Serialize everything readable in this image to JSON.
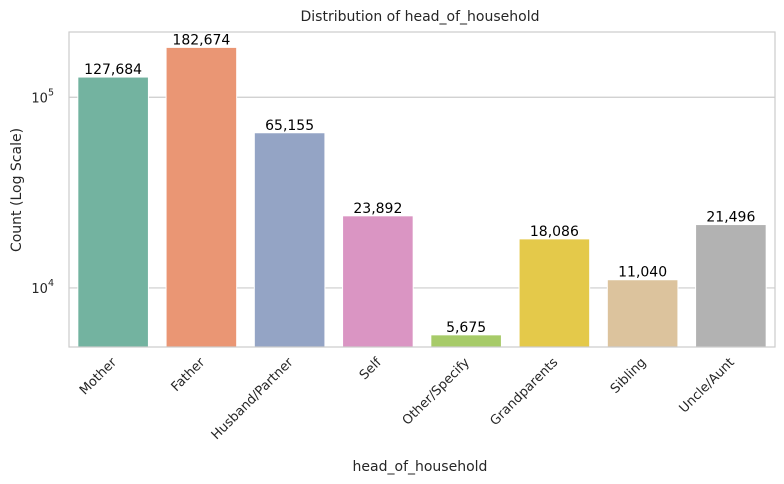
{
  "chart_data": {
    "type": "bar",
    "title": "Distribution of head_of_household",
    "xlabel": "head_of_household",
    "ylabel": "Count (Log Scale)",
    "yscale": "log",
    "ylim": [
      4900,
      220000
    ],
    "yticks": [
      {
        "value": 10000,
        "base": "10",
        "exp": "4"
      },
      {
        "value": 100000,
        "base": "10",
        "exp": "5"
      }
    ],
    "grid": "horizontal",
    "categories": [
      "Mother",
      "Father",
      "Husband/Partner",
      "Self",
      "Other/Specify",
      "Grandparents",
      "Sibling",
      "Uncle/Aunt"
    ],
    "values": [
      127684,
      182674,
      65155,
      23892,
      5675,
      18086,
      11040,
      21496
    ],
    "value_labels": [
      "127,684",
      "182,674",
      "65,155",
      "23,892",
      "5,675",
      "18,086",
      "11,040",
      "21,496"
    ],
    "colors": [
      "#73b3a0",
      "#ea9674",
      "#94a4c5",
      "#da95c3",
      "#a7cb69",
      "#e4c94a",
      "#dcc39d",
      "#b2b2b2"
    ]
  }
}
